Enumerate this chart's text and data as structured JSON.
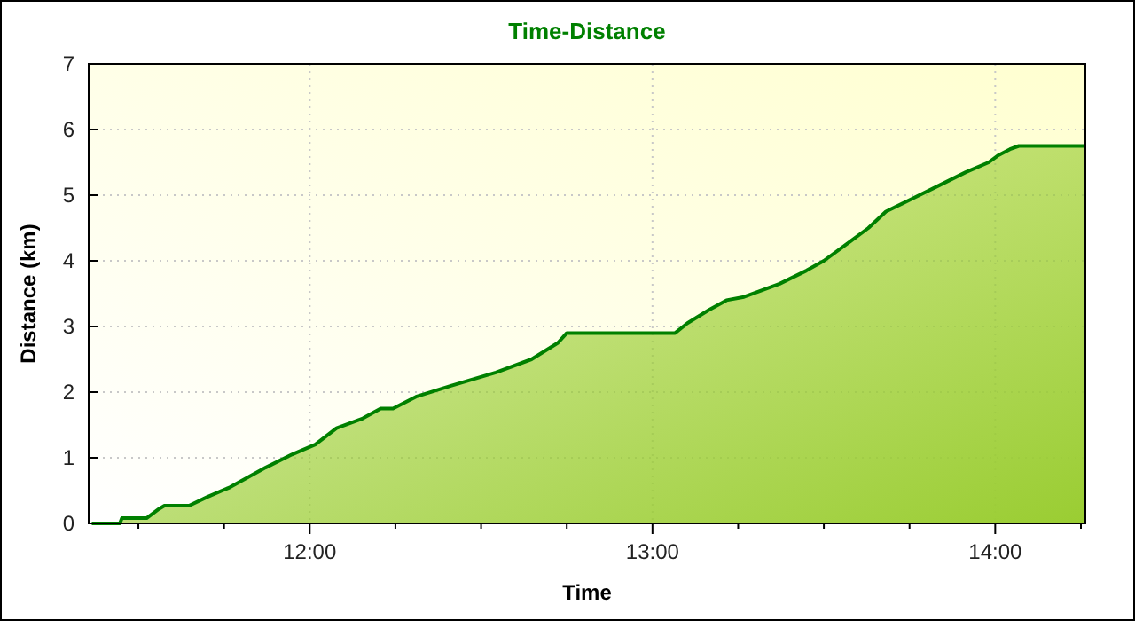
{
  "chart_data": {
    "type": "area",
    "title": "Time-Distance",
    "xlabel": "Time",
    "ylabel": "Distance (km)",
    "x": [
      11.364,
      11.446,
      11.452,
      11.524,
      11.56,
      11.576,
      11.648,
      11.7,
      11.767,
      11.871,
      11.948,
      12.016,
      12.078,
      12.155,
      12.207,
      12.243,
      12.31,
      12.414,
      12.543,
      12.647,
      12.724,
      12.75,
      13.066,
      13.102,
      13.164,
      13.216,
      13.267,
      13.371,
      13.449,
      13.5,
      13.578,
      13.63,
      13.681,
      13.759,
      13.837,
      13.914,
      13.981,
      14.007,
      14.043,
      14.069,
      14.261
    ],
    "series": [
      {
        "color": "#008000",
        "values": [
          0,
          0,
          0.08,
          0.08,
          0.22,
          0.27,
          0.27,
          0.4,
          0.55,
          0.85,
          1.05,
          1.2,
          1.45,
          1.6,
          1.75,
          1.75,
          1.93,
          2.1,
          2.3,
          2.5,
          2.75,
          2.9,
          2.9,
          3.05,
          3.25,
          3.4,
          3.45,
          3.65,
          3.85,
          4.0,
          4.3,
          4.5,
          4.75,
          4.95,
          5.15,
          5.35,
          5.5,
          5.6,
          5.7,
          5.75,
          5.75
        ]
      }
    ],
    "xlim": [
      11.355,
      14.263
    ],
    "xticks": [
      {
        "value": 11.5,
        "label": null
      },
      {
        "value": 11.75,
        "label": null
      },
      {
        "value": 12,
        "label": "12:00"
      },
      {
        "value": 12.25,
        "label": null
      },
      {
        "value": 12.5,
        "label": null
      },
      {
        "value": 12.75,
        "label": null
      },
      {
        "value": 13,
        "label": "13:00"
      },
      {
        "value": 13.25,
        "label": null
      },
      {
        "value": 13.5,
        "label": null
      },
      {
        "value": 13.75,
        "label": null
      },
      {
        "value": 14,
        "label": "14:00"
      },
      {
        "value": 14.25,
        "label": null
      }
    ],
    "ylim": [
      0,
      7
    ],
    "yticks": [
      0,
      1,
      2,
      3,
      4,
      5,
      6,
      7
    ],
    "grid": true,
    "line_style": "solid",
    "marker": "none"
  }
}
